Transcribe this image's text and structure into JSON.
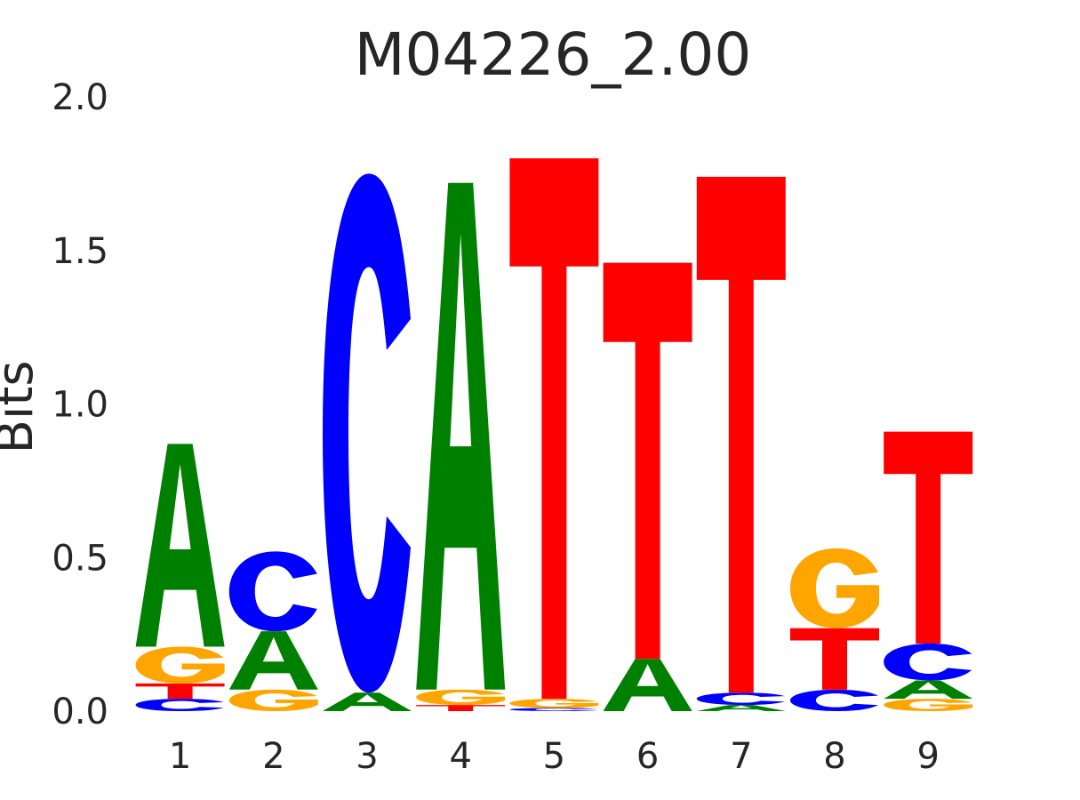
{
  "chart_data": {
    "type": "sequence-logo",
    "title": "M04226_2.00",
    "xlabel": "",
    "ylabel": "Bits",
    "ylim": [
      0,
      2.0
    ],
    "yticks": [
      "0.0",
      "0.5",
      "1.0",
      "1.5",
      "2.0"
    ],
    "categories": [
      "1",
      "2",
      "3",
      "4",
      "5",
      "6",
      "7",
      "8",
      "9"
    ],
    "grid": false,
    "colors": {
      "A": "#008000",
      "C": "#0000ff",
      "G": "#ffa500",
      "T": "#ff0000"
    },
    "positions": [
      {
        "position": "1",
        "stack": [
          {
            "letter": "C",
            "bits": 0.04
          },
          {
            "letter": "T",
            "bits": 0.05
          },
          {
            "letter": "G",
            "bits": 0.12
          },
          {
            "letter": "A",
            "bits": 0.66
          }
        ]
      },
      {
        "position": "2",
        "stack": [
          {
            "letter": "G",
            "bits": 0.07
          },
          {
            "letter": "A",
            "bits": 0.19
          },
          {
            "letter": "C",
            "bits": 0.26
          }
        ]
      },
      {
        "position": "3",
        "stack": [
          {
            "letter": "A",
            "bits": 0.06
          },
          {
            "letter": "C",
            "bits": 1.69
          }
        ]
      },
      {
        "position": "4",
        "stack": [
          {
            "letter": "T",
            "bits": 0.02
          },
          {
            "letter": "G",
            "bits": 0.05
          },
          {
            "letter": "A",
            "bits": 1.65
          }
        ]
      },
      {
        "position": "5",
        "stack": [
          {
            "letter": "C",
            "bits": 0.01
          },
          {
            "letter": "G",
            "bits": 0.03
          },
          {
            "letter": "T",
            "bits": 1.76
          }
        ]
      },
      {
        "position": "6",
        "stack": [
          {
            "letter": "A",
            "bits": 0.17
          },
          {
            "letter": "T",
            "bits": 1.29
          }
        ]
      },
      {
        "position": "7",
        "stack": [
          {
            "letter": "A",
            "bits": 0.02
          },
          {
            "letter": "C",
            "bits": 0.04
          },
          {
            "letter": "T",
            "bits": 1.68
          }
        ]
      },
      {
        "position": "8",
        "stack": [
          {
            "letter": "C",
            "bits": 0.07
          },
          {
            "letter": "T",
            "bits": 0.2
          },
          {
            "letter": "G",
            "bits": 0.26
          }
        ]
      },
      {
        "position": "9",
        "stack": [
          {
            "letter": "G",
            "bits": 0.04
          },
          {
            "letter": "A",
            "bits": 0.06
          },
          {
            "letter": "C",
            "bits": 0.12
          },
          {
            "letter": "T",
            "bits": 0.69
          }
        ]
      }
    ]
  }
}
